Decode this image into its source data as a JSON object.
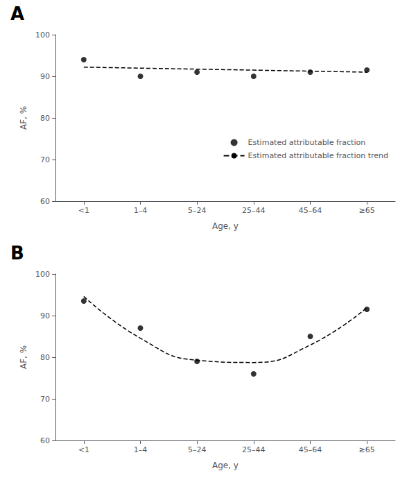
{
  "chart_data": [
    {
      "type": "scatter",
      "title": "A",
      "categories": [
        "<1",
        "1–4",
        "5–24",
        "25–44",
        "45–64",
        "≥65"
      ],
      "xlabel": "Age, y",
      "ylabel": "AF, %",
      "ylim": [
        60,
        100
      ],
      "yticks": [
        60,
        70,
        80,
        90,
        100
      ],
      "grid": false,
      "legend": "lower right",
      "series": [
        {
          "name": "Estimated attributable fraction",
          "type": "scatter",
          "marker": "circle",
          "color": "#000000",
          "values": [
            94,
            90,
            91,
            90,
            91,
            91.5
          ]
        },
        {
          "name": "Estimated attributable fraction trend",
          "type": "line",
          "line_style": "dashed",
          "color": "#000000",
          "values": [
            92.2,
            91.96,
            91.72,
            91.48,
            91.24,
            91.0
          ]
        }
      ]
    },
    {
      "type": "scatter",
      "title": "B",
      "categories": [
        "<1",
        "1–4",
        "5–24",
        "25–44",
        "45–64",
        "≥65"
      ],
      "xlabel": "Age, y",
      "ylabel": "AF, %",
      "ylim": [
        60,
        100
      ],
      "yticks": [
        60,
        70,
        80,
        90,
        100
      ],
      "grid": false,
      "series": [
        {
          "type": "scatter",
          "marker": "circle",
          "color": "#000000",
          "values": [
            93.5,
            87,
            79,
            76,
            85,
            91.5
          ]
        },
        {
          "type": "line",
          "line_style": "dashed",
          "color": "#000000",
          "values": [
            94.6071,
            84.5643,
            79.2714,
            78.7286,
            82.9357,
            91.8929
          ]
        }
      ]
    }
  ]
}
